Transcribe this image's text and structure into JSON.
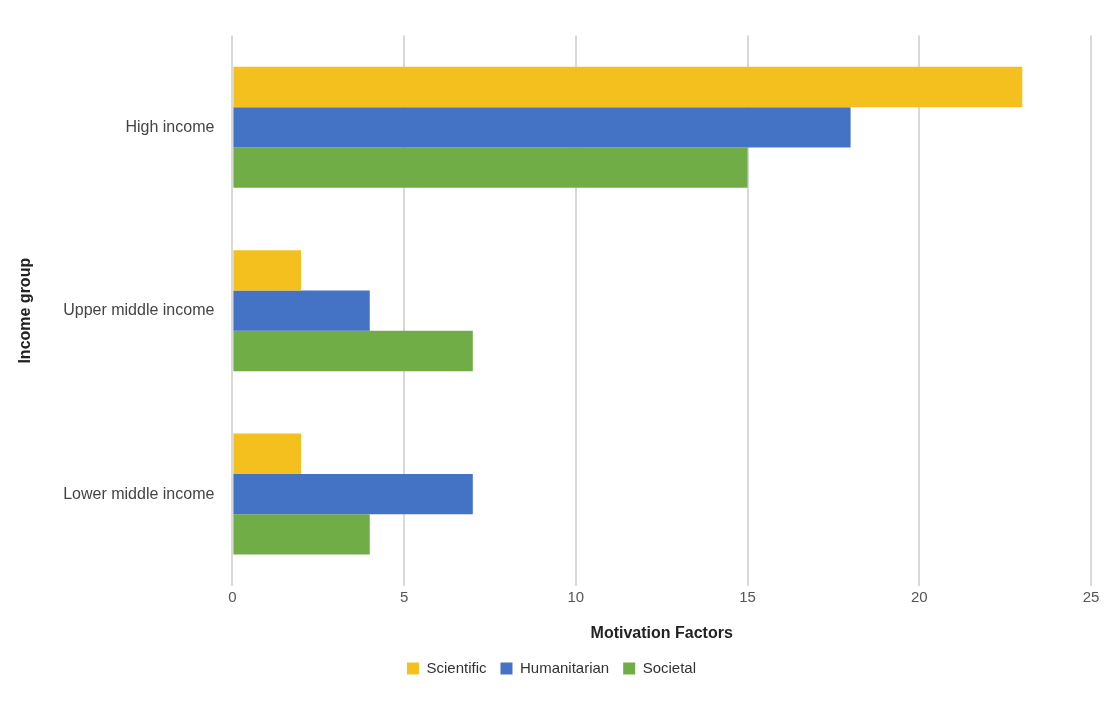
{
  "chart_data": {
    "type": "bar",
    "orientation": "horizontal",
    "xlabel": "Motivation Factors",
    "ylabel": "Income group",
    "categories": [
      "High income",
      "Upper middle income",
      "Lower middle income"
    ],
    "series": [
      {
        "name": "Scientific",
        "color": "#f4c01e",
        "values": [
          23,
          2,
          2
        ]
      },
      {
        "name": "Humanitarian",
        "color": "#4472c4",
        "values": [
          18,
          4,
          7
        ]
      },
      {
        "name": "Societal",
        "color": "#70ad47",
        "values": [
          15,
          7,
          4
        ]
      }
    ],
    "xlim": [
      0,
      25
    ],
    "xticks": [
      0,
      5,
      10,
      15,
      20,
      25
    ],
    "grid": "x",
    "legend": "bottom"
  }
}
